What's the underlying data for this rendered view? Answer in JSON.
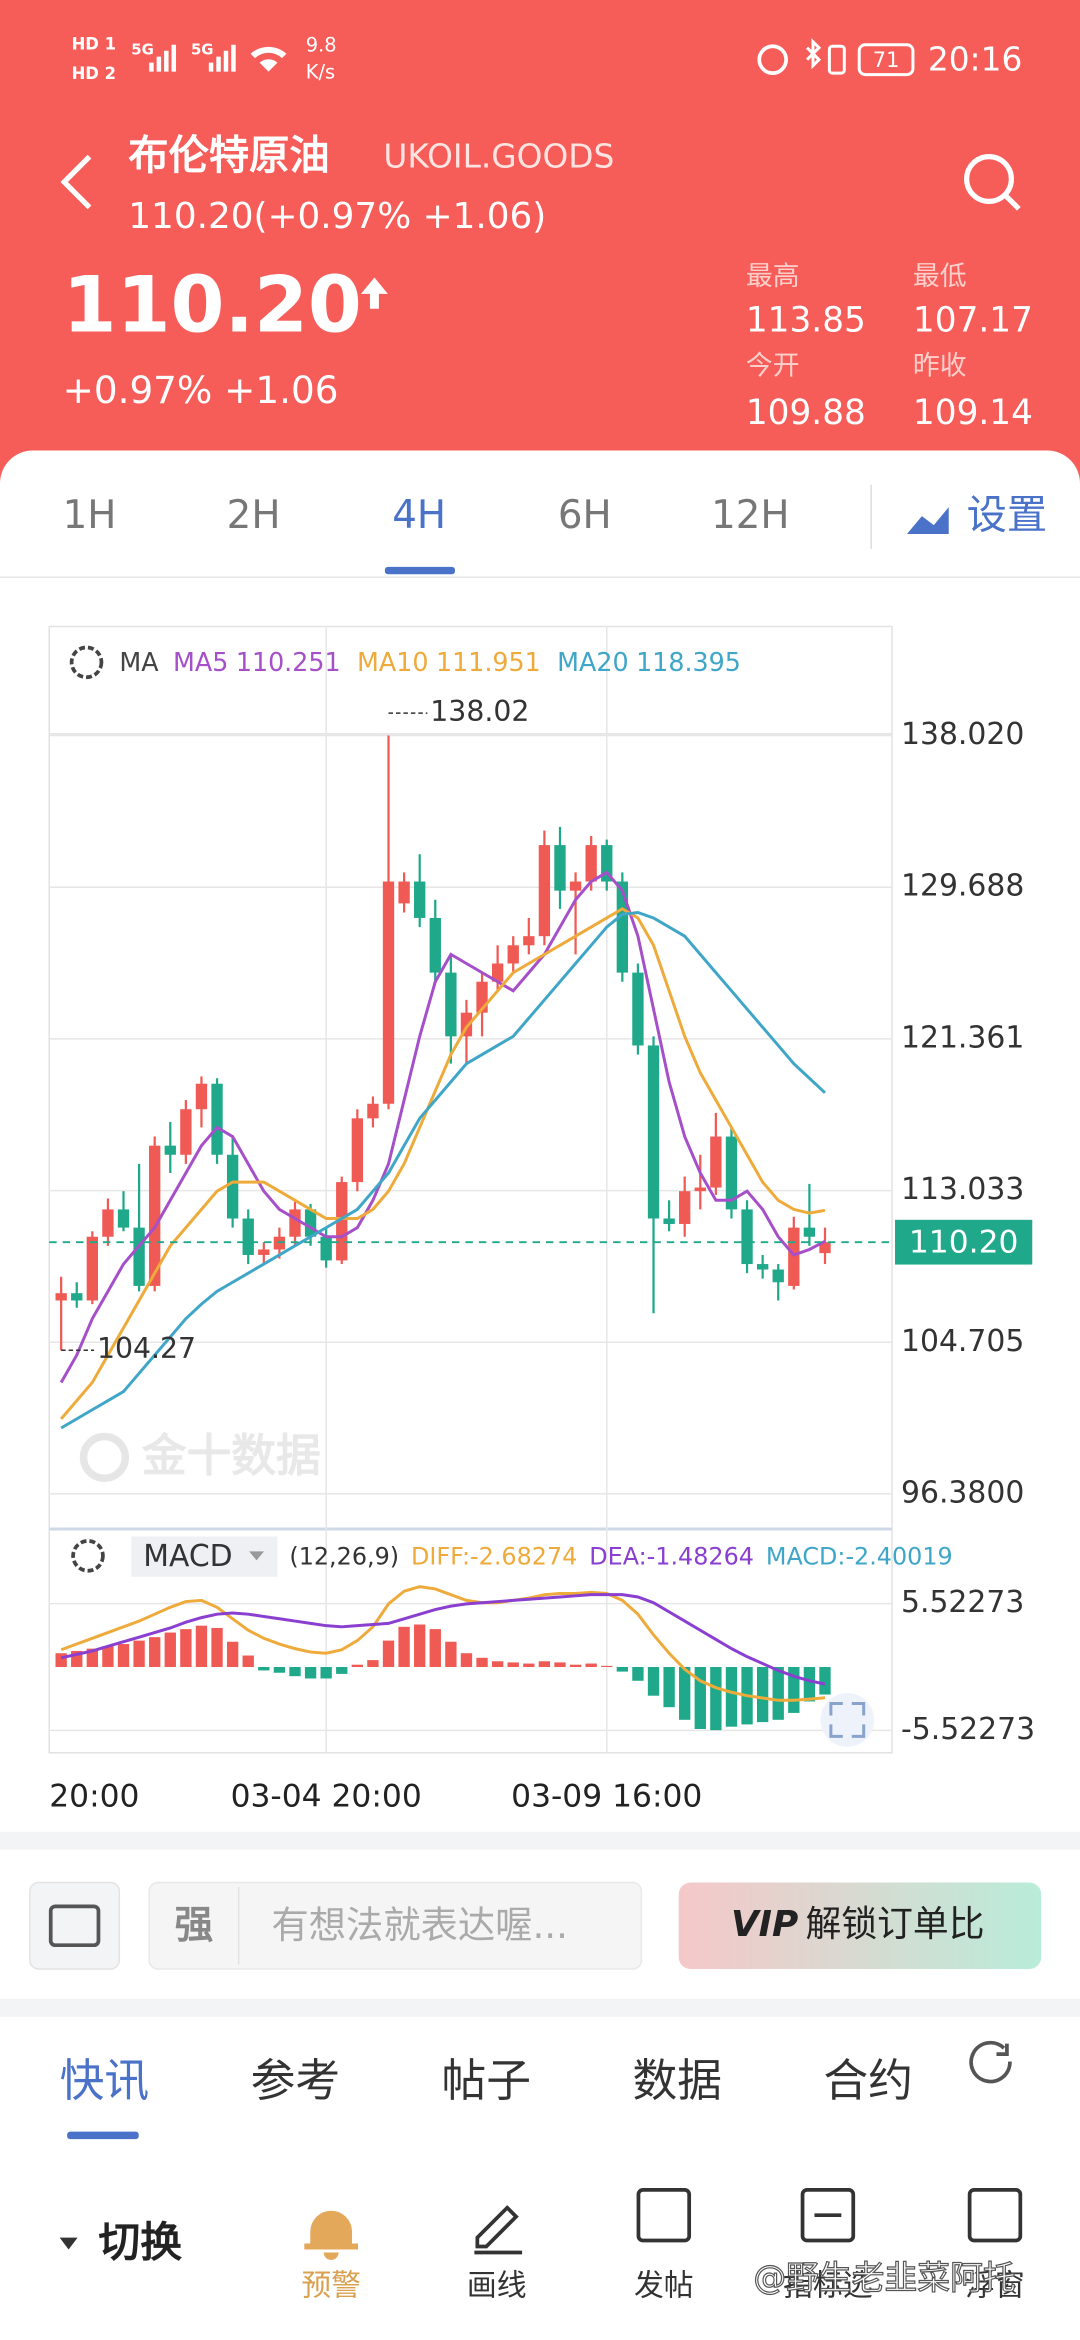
{
  "status_bar": {
    "sim1": "HD 1",
    "sim2": "HD 2",
    "net1": "5G",
    "net2": "5G",
    "speed": "9.8",
    "speed_unit": "K/s",
    "battery": "71",
    "time": "20:16"
  },
  "header": {
    "name": "布伦特原油",
    "code": "UKOIL.GOODS",
    "quote": "110.20(+0.97% +1.06)",
    "price": "110.20",
    "change": "+0.97% +1.06",
    "stats": [
      {
        "label": "最高",
        "value": "113.85"
      },
      {
        "label": "最低",
        "value": "107.17"
      },
      {
        "label": "今开",
        "value": "109.88"
      },
      {
        "label": "昨收",
        "value": "109.14"
      }
    ]
  },
  "tabs": [
    "1H",
    "2H",
    "4H",
    "6H",
    "12H"
  ],
  "settings": "设置",
  "chart_data": {
    "type": "candlestick",
    "ma_label": "MA",
    "watermark": "金十数据",
    "up_color": "#f05a54",
    "down_color": "#1fa98a",
    "categories": [
      "20:00",
      null,
      null,
      null,
      null,
      null,
      null,
      null,
      null,
      null,
      null,
      null,
      null,
      null,
      null,
      null,
      null,
      "03-04 20:00",
      null,
      null,
      null,
      null,
      null,
      null,
      null,
      null,
      null,
      null,
      null,
      null,
      null,
      null,
      null,
      null,
      null,
      "03-09 16:00",
      null,
      null,
      null,
      null,
      null,
      null,
      null,
      null,
      null,
      null,
      null,
      null,
      null,
      null
    ],
    "open": [
      107.0,
      107.4,
      107.0,
      110.5,
      112.0,
      111.0,
      107.8,
      115.5,
      115.0,
      117.5,
      118.9,
      115.0,
      111.5,
      109.5,
      109.8,
      110.5,
      112.0,
      110.5,
      109.2,
      113.5,
      117.0,
      117.8,
      128.8,
      130.0,
      128.0,
      125.0,
      121.5,
      122.8,
      124.5,
      125.5,
      126.5,
      127.0,
      132.0,
      129.5,
      130.0,
      132.0,
      130.0,
      125.0,
      121.0,
      111.5,
      111.2,
      113.0,
      113.2,
      116.0,
      112.0,
      109.0,
      108.7,
      107.8,
      111.0,
      109.6
    ],
    "high": [
      108.3,
      108.0,
      110.8,
      112.6,
      113.0,
      114.5,
      116.0,
      116.8,
      118.0,
      119.3,
      119.2,
      116.0,
      112.0,
      110.2,
      111.0,
      112.5,
      112.3,
      111.0,
      113.8,
      117.5,
      118.2,
      138.02,
      130.5,
      131.5,
      129.0,
      126.0,
      123.5,
      125.0,
      126.5,
      127.0,
      128.0,
      132.8,
      133.0,
      130.5,
      132.5,
      132.3,
      130.5,
      125.5,
      121.5,
      112.5,
      113.8,
      115.0,
      117.3,
      116.5,
      112.5,
      109.5,
      109.0,
      111.6,
      113.4,
      111.0
    ],
    "low": [
      104.27,
      106.6,
      106.8,
      110.0,
      110.8,
      107.5,
      107.5,
      114.0,
      114.5,
      116.5,
      114.5,
      111.0,
      109.0,
      109.0,
      109.3,
      110.0,
      110.0,
      108.8,
      109.0,
      113.0,
      116.5,
      117.5,
      128.3,
      127.5,
      124.5,
      120.0,
      120.0,
      121.5,
      124.0,
      125.0,
      126.0,
      126.5,
      128.5,
      126.0,
      129.5,
      129.5,
      124.5,
      120.5,
      106.3,
      110.8,
      110.5,
      112.0,
      112.8,
      111.5,
      108.5,
      108.2,
      107.0,
      107.6,
      110.0,
      109.0
    ],
    "close": [
      107.4,
      107.0,
      110.5,
      112.0,
      111.0,
      107.8,
      115.5,
      115.0,
      117.5,
      118.9,
      115.0,
      111.5,
      109.5,
      109.8,
      110.5,
      112.0,
      110.5,
      109.2,
      113.5,
      117.0,
      117.8,
      130.0,
      130.0,
      128.0,
      125.0,
      121.5,
      122.8,
      124.5,
      125.5,
      126.5,
      127.0,
      132.0,
      129.5,
      130.0,
      132.0,
      130.0,
      125.0,
      121.0,
      111.5,
      111.2,
      113.0,
      113.2,
      116.0,
      112.0,
      109.0,
      108.7,
      108.0,
      111.0,
      110.5,
      110.2
    ],
    "ma": [
      {
        "name": "MA5",
        "value": 110.251,
        "color": "#a54fc9",
        "values": [
          102.5,
          104,
          106,
          107.5,
          109,
          110,
          111,
          112.5,
          114,
          115.5,
          116.5,
          116,
          114.5,
          113,
          112,
          111.5,
          111,
          110.5,
          110.5,
          111,
          112.5,
          114.5,
          118,
          121.5,
          124.5,
          126,
          125.5,
          125,
          124.5,
          124,
          125,
          126,
          127.5,
          129,
          130,
          130.5,
          129.5,
          127,
          123,
          119,
          116,
          114,
          112.5,
          112.5,
          113,
          112,
          110.5,
          109.5,
          109.8,
          110.25
        ]
      },
      {
        "name": "MA10",
        "value": 111.951,
        "color": "#eeaa3a",
        "values": [
          100.5,
          101.5,
          102.5,
          104,
          105.5,
          107,
          108.5,
          110,
          111,
          112,
          113,
          113.5,
          113.5,
          113.5,
          113,
          112.5,
          112,
          111.5,
          111.5,
          111.5,
          112,
          113,
          114.5,
          116.5,
          118.5,
          120.5,
          122,
          123,
          124,
          125,
          125.5,
          126,
          126.5,
          127,
          127.5,
          128,
          128.5,
          128,
          126.5,
          124,
          121.5,
          119.5,
          118,
          116.5,
          115,
          113.5,
          112.5,
          112,
          111.8,
          111.95
        ]
      },
      {
        "name": "MA20",
        "value": 118.395,
        "color": "#3fa6c8",
        "values": [
          100,
          100.5,
          101,
          101.5,
          102,
          103,
          104,
          105,
          106,
          106.8,
          107.5,
          108,
          108.5,
          109,
          109.5,
          110,
          110.5,
          111,
          111.5,
          112,
          113,
          114,
          115.5,
          117,
          118,
          119,
          120,
          120.5,
          121,
          121.5,
          122.5,
          123.5,
          124.5,
          125.5,
          126.5,
          127.5,
          128.2,
          128.3,
          128,
          127.5,
          127,
          126,
          125,
          124,
          123,
          122,
          121,
          120,
          119.2,
          118.4
        ]
      }
    ],
    "ylim": [
      94.7,
      144.0
    ],
    "yticks": [
      {
        "value": 138.02,
        "label": "138.020"
      },
      129.688,
      121.361,
      113.033,
      104.705,
      {
        "value": 96.38,
        "label": "96.3800"
      }
    ],
    "last_price": {
      "value": 110.2,
      "label": "110.20"
    },
    "high_annotation": 138.02,
    "low_annotation": 104.27,
    "macd": {
      "label": "MACD",
      "params": "(12,26,9)",
      "ylim": [
        -7.47,
        11.63
      ],
      "yticks": [
        5.52273,
        -5.52273
      ],
      "diff": {
        "name": "DIFF:",
        "value": -2.68274,
        "color": "#eeaa3a",
        "values": [
          1.5,
          2.0,
          2.5,
          3.0,
          3.5,
          4.0,
          4.6,
          5.2,
          5.7,
          5.8,
          5.2,
          4.2,
          3.2,
          2.5,
          2.0,
          1.6,
          1.3,
          1.2,
          1.5,
          2.3,
          3.5,
          5.5,
          6.6,
          7.0,
          6.8,
          6.3,
          5.8,
          5.6,
          5.6,
          5.8,
          6.0,
          6.3,
          6.4,
          6.4,
          6.5,
          6.4,
          5.8,
          4.6,
          2.8,
          1.2,
          -0.2,
          -1.2,
          -1.8,
          -2.2,
          -2.5,
          -2.7,
          -2.9,
          -2.9,
          -2.8,
          -2.68
        ]
      },
      "dea": {
        "name": "DEA:",
        "value": -1.48264,
        "color": "#8a3fd0",
        "values": [
          0.8,
          1.1,
          1.4,
          1.8,
          2.2,
          2.6,
          3.0,
          3.4,
          3.9,
          4.3,
          4.6,
          4.7,
          4.6,
          4.4,
          4.2,
          4.0,
          3.8,
          3.6,
          3.5,
          3.6,
          3.7,
          3.8,
          4.2,
          4.6,
          5.0,
          5.3,
          5.5,
          5.6,
          5.7,
          5.8,
          5.9,
          6.0,
          6.1,
          6.2,
          6.3,
          6.3,
          6.3,
          6.1,
          5.6,
          4.8,
          4.0,
          3.2,
          2.4,
          1.6,
          0.9,
          0.3,
          -0.3,
          -0.8,
          -1.2,
          -1.48
        ]
      },
      "hist": {
        "name": "MACD:",
        "value": -2.40019,
        "color": "#3fa6c8",
        "values": [
          1.2,
          1.4,
          1.6,
          1.8,
          2.0,
          2.3,
          2.6,
          3.0,
          3.3,
          3.6,
          3.4,
          2.2,
          1.0,
          -0.3,
          -0.5,
          -0.8,
          -1.0,
          -1.0,
          -0.6,
          0.2,
          0.6,
          2.3,
          3.5,
          3.7,
          3.3,
          2.2,
          1.2,
          0.8,
          0.5,
          0.4,
          0.3,
          0.5,
          0.4,
          0.2,
          0.3,
          0.1,
          -0.4,
          -1.2,
          -2.5,
          -3.5,
          -4.6,
          -5.4,
          -5.5,
          -5.2,
          -5.0,
          -4.8,
          -4.6,
          -4.0,
          -3.0,
          -2.4
        ]
      }
    }
  },
  "comment_bar": {
    "icon": "强",
    "placeholder": "有想法就表达喔...",
    "vip": "VIP",
    "button": "解锁订单比"
  },
  "news_tabs": [
    "快讯",
    "参考",
    "帖子",
    "数据",
    "合约"
  ],
  "toolbar": {
    "switch": "切换",
    "items": [
      "预警",
      "画线",
      "发帖",
      "指标选",
      "浮窗"
    ]
  },
  "watermark": "@野生老韭菜阿托"
}
